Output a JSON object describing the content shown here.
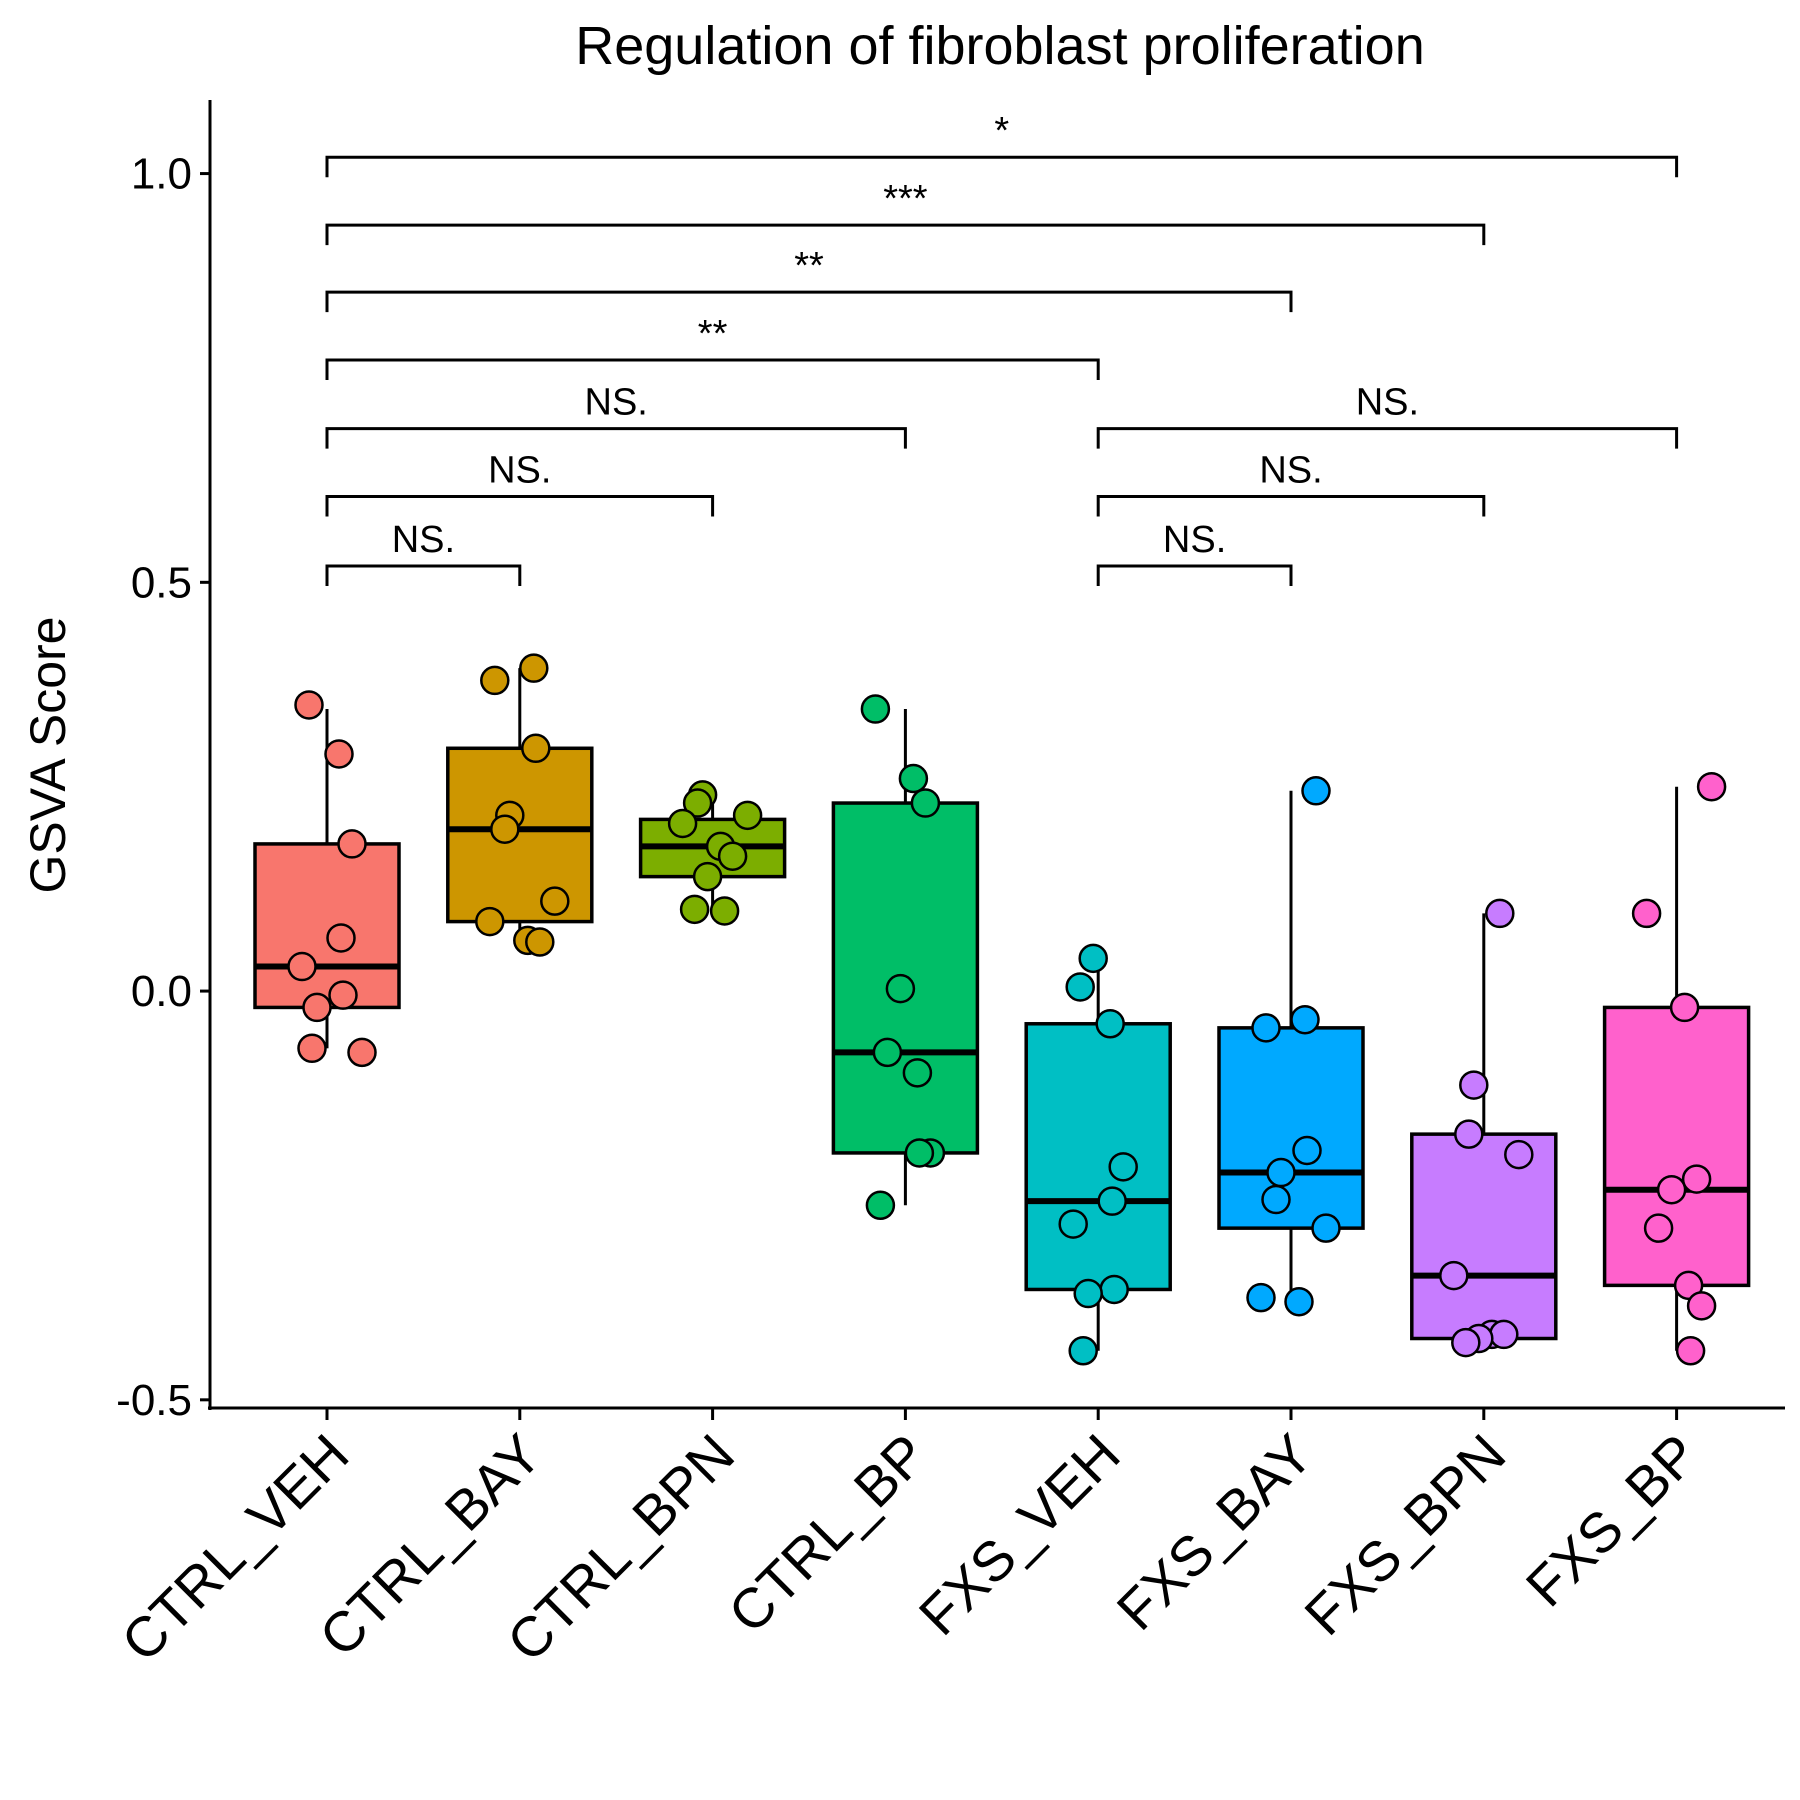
{
  "chart_data": {
    "type": "box",
    "title": "Regulation of fibroblast proliferation",
    "xlabel": "",
    "ylabel": "GSVA Score",
    "ylim": [
      -0.51,
      1.09
    ],
    "yticks": [
      "1.0",
      "0.5",
      "0.0",
      "-0.5"
    ],
    "ytick_values": [
      1.0,
      0.5,
      0.0,
      -0.5
    ],
    "grid": false,
    "legend": "none",
    "groups": [
      {
        "name": "CTRL_VEH",
        "color": "#F8766D",
        "q1": -0.02,
        "median": 0.03,
        "q3": 0.18,
        "whisker_low": -0.07,
        "whisker_high": 0.345,
        "points": [
          0.35,
          0.29,
          0.18,
          0.065,
          0.03,
          -0.005,
          -0.02,
          -0.07,
          -0.075
        ]
      },
      {
        "name": "CTRL_BAY",
        "color": "#CD9600",
        "q1": 0.085,
        "median": 0.198,
        "q3": 0.297,
        "whisker_low": 0.06,
        "whisker_high": 0.395,
        "points": [
          0.395,
          0.38,
          0.297,
          0.215,
          0.198,
          0.11,
          0.085,
          0.062,
          0.06
        ]
      },
      {
        "name": "CTRL_BPN",
        "color": "#7CAE00",
        "q1": 0.14,
        "median": 0.177,
        "q3": 0.21,
        "whisker_low": 0.098,
        "whisker_high": 0.24,
        "points": [
          0.24,
          0.23,
          0.215,
          0.205,
          0.177,
          0.165,
          0.14,
          0.1,
          0.098
        ]
      },
      {
        "name": "CTRL_BP",
        "color": "#00BE67",
        "q1": -0.198,
        "median": -0.075,
        "q3": 0.23,
        "whisker_low": -0.262,
        "whisker_high": 0.345,
        "points": [
          0.345,
          0.26,
          0.23,
          0.003,
          -0.075,
          -0.1,
          -0.198,
          -0.198,
          -0.262
        ]
      },
      {
        "name": "FXS_VEH",
        "color": "#00BFC4",
        "q1": -0.365,
        "median": -0.257,
        "q3": -0.04,
        "whisker_low": -0.44,
        "whisker_high": 0.04,
        "points": [
          0.04,
          0.005,
          -0.04,
          -0.215,
          -0.257,
          -0.285,
          -0.365,
          -0.37,
          -0.44
        ]
      },
      {
        "name": "FXS_BAY",
        "color": "#00A9FF",
        "q1": -0.29,
        "median": -0.222,
        "q3": -0.045,
        "whisker_low": -0.38,
        "whisker_high": 0.245,
        "points": [
          0.245,
          -0.035,
          -0.045,
          -0.195,
          -0.222,
          -0.255,
          -0.29,
          -0.375,
          -0.38
        ]
      },
      {
        "name": "FXS_BPN",
        "color": "#C77CFF",
        "q1": -0.425,
        "median": -0.348,
        "q3": -0.175,
        "whisker_low": -0.43,
        "whisker_high": 0.095,
        "points": [
          0.095,
          -0.115,
          -0.175,
          -0.2,
          -0.348,
          -0.42,
          -0.42,
          -0.425,
          -0.43
        ]
      },
      {
        "name": "FXS_BP",
        "color": "#FF61CC",
        "q1": -0.36,
        "median": -0.243,
        "q3": -0.02,
        "whisker_low": -0.44,
        "whisker_high": 0.25,
        "points": [
          0.25,
          0.095,
          -0.02,
          -0.23,
          -0.243,
          -0.29,
          -0.36,
          -0.385,
          -0.44
        ]
      }
    ],
    "comparisons": [
      {
        "from": 0,
        "to": 1,
        "label": "NS.",
        "y": 0.52
      },
      {
        "from": 0,
        "to": 2,
        "label": "NS.",
        "y": 0.605
      },
      {
        "from": 0,
        "to": 3,
        "label": "NS.",
        "y": 0.688
      },
      {
        "from": 0,
        "to": 4,
        "label": "**",
        "y": 0.772
      },
      {
        "from": 0,
        "to": 5,
        "label": "**",
        "y": 0.855
      },
      {
        "from": 0,
        "to": 6,
        "label": "***",
        "y": 0.937
      },
      {
        "from": 0,
        "to": 7,
        "label": "*",
        "y": 1.02
      },
      {
        "from": 4,
        "to": 5,
        "label": "NS.",
        "y": 0.52
      },
      {
        "from": 4,
        "to": 6,
        "label": "NS.",
        "y": 0.605
      },
      {
        "from": 4,
        "to": 7,
        "label": "NS.",
        "y": 0.688
      }
    ]
  }
}
